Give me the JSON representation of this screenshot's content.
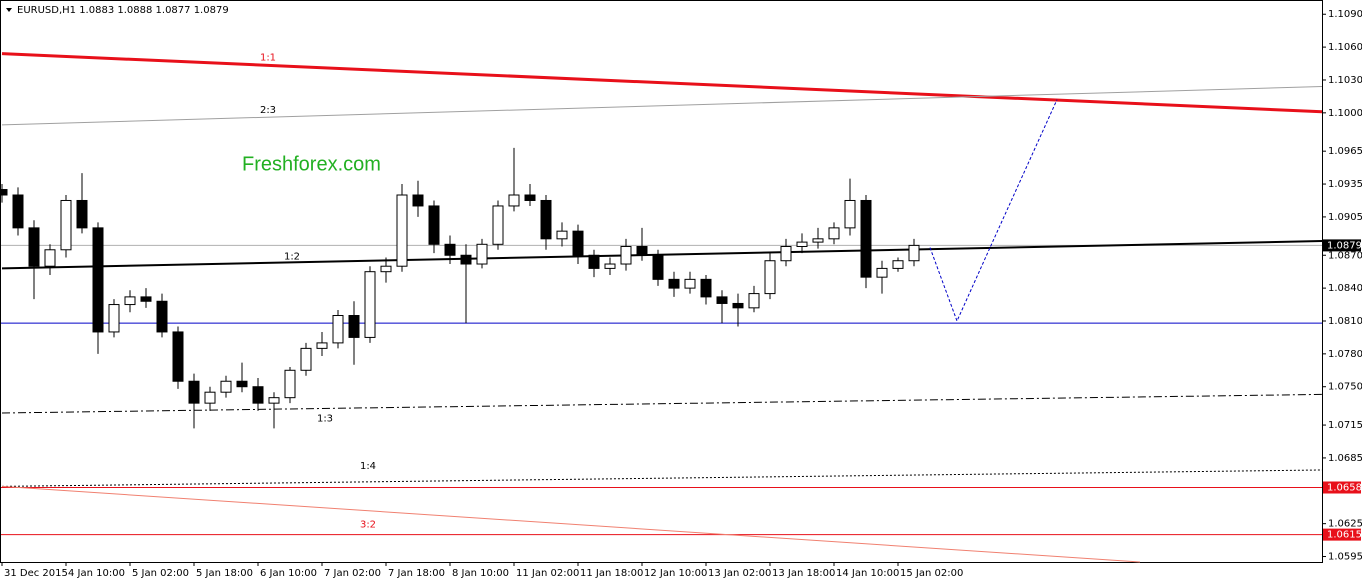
{
  "chart_data": {
    "type": "candlestick",
    "title": "EURUSD,H1  1.0883 1.0888 1.0877 1.0879",
    "watermark": "Freshforex.com",
    "xlim": [
      0,
      330
    ],
    "xticks": [
      {
        "value": 0,
        "label": "31 Dec 2015"
      },
      {
        "value": 16,
        "label": "4 Jan 10:00"
      },
      {
        "value": 32,
        "label": "5 Jan 02:00"
      },
      {
        "value": 48,
        "label": "5 Jan 18:00"
      },
      {
        "value": 64,
        "label": "6 Jan 10:00"
      },
      {
        "value": 80,
        "label": "7 Jan 02:00"
      },
      {
        "value": 96,
        "label": "7 Jan 18:00"
      },
      {
        "value": 112,
        "label": "8 Jan 10:00"
      },
      {
        "value": 128,
        "label": "11 Jan 02:00"
      },
      {
        "value": 144,
        "label": "11 Jan 18:00"
      },
      {
        "value": 160,
        "label": "12 Jan 10:00"
      },
      {
        "value": 176,
        "label": "13 Jan 02:00"
      },
      {
        "value": 192,
        "label": "13 Jan 18:00"
      },
      {
        "value": 208,
        "label": "14 Jan 10:00"
      },
      {
        "value": 224,
        "label": "15 Jan 02:00"
      }
    ],
    "ylim": [
      1.059,
      1.1103
    ],
    "yticks": [
      {
        "value": 1.109,
        "label": "1.1090"
      },
      {
        "value": 1.106,
        "label": "1.1060"
      },
      {
        "value": 1.103,
        "label": "1.1030"
      },
      {
        "value": 1.1,
        "label": "1.1000"
      },
      {
        "value": 1.0965,
        "label": "1.0965"
      },
      {
        "value": 1.0935,
        "label": "1.0935"
      },
      {
        "value": 1.0905,
        "label": "1.0905"
      },
      {
        "value": 1.087,
        "label": "1.0870"
      },
      {
        "value": 1.084,
        "label": "1.0840"
      },
      {
        "value": 1.081,
        "label": "1.0810"
      },
      {
        "value": 1.078,
        "label": "1.0780"
      },
      {
        "value": 1.075,
        "label": "1.0750"
      },
      {
        "value": 1.0715,
        "label": "1.0715"
      },
      {
        "value": 1.0685,
        "label": "1.0685"
      },
      {
        "value": 1.0625,
        "label": "1.0625"
      },
      {
        "value": 1.0595,
        "label": "1.0595"
      }
    ],
    "x": [
      0,
      4,
      8,
      12,
      16,
      20,
      24,
      28,
      32,
      36,
      40,
      44,
      48,
      52,
      56,
      60,
      64,
      68,
      72,
      76,
      80,
      84,
      88,
      92,
      96,
      100,
      104,
      108,
      112,
      116,
      120,
      124,
      128,
      132,
      136,
      140,
      144,
      148,
      152,
      156,
      160,
      164,
      168,
      172,
      176,
      180,
      184,
      188,
      192,
      196,
      200,
      204,
      208,
      212,
      216,
      220,
      224,
      228
    ],
    "open": [
      1.093,
      1.0925,
      1.0895,
      1.086,
      1.0875,
      1.092,
      1.0895,
      1.08,
      1.0825,
      1.0832,
      1.0828,
      1.08,
      1.0755,
      1.0735,
      1.0745,
      1.0755,
      1.075,
      1.0735,
      1.074,
      1.0765,
      1.0785,
      1.079,
      1.0815,
      1.0795,
      1.0855,
      1.086,
      1.0925,
      1.0915,
      1.088,
      1.087,
      1.0862,
      1.088,
      1.0915,
      1.0925,
      1.092,
      1.0885,
      1.0892,
      1.087,
      1.0858,
      1.0862,
      1.0878,
      1.087,
      1.0848,
      1.084,
      1.0848,
      1.0832,
      1.0826,
      1.0822,
      1.0835,
      1.0865,
      1.0878,
      1.0882,
      1.0885,
      1.0895,
      1.092,
      1.085,
      1.0858,
      1.0865
    ],
    "high": [
      1.0935,
      1.0932,
      1.0902,
      1.088,
      1.0925,
      1.0945,
      1.09,
      1.083,
      1.0838,
      1.084,
      1.0835,
      1.0805,
      1.0762,
      1.075,
      1.076,
      1.0772,
      1.0758,
      1.0745,
      1.0768,
      1.079,
      1.08,
      1.082,
      1.0828,
      1.086,
      1.0868,
      1.0935,
      1.0938,
      1.092,
      1.0888,
      1.088,
      1.0885,
      1.092,
      1.0968,
      1.0935,
      1.0925,
      1.09,
      1.0898,
      1.0875,
      1.0868,
      1.0885,
      1.0895,
      1.0875,
      1.0855,
      1.0855,
      1.0852,
      1.0838,
      1.0835,
      1.0842,
      1.0872,
      1.0885,
      1.089,
      1.0895,
      1.09,
      1.094,
      1.0925,
      1.0865,
      1.0868,
      1.0885
    ],
    "low": [
      1.0918,
      1.0888,
      1.083,
      1.0852,
      1.0868,
      1.089,
      1.078,
      1.0795,
      1.0818,
      1.0822,
      1.0795,
      1.0748,
      1.0712,
      1.0728,
      1.074,
      1.0745,
      1.0728,
      1.0712,
      1.0735,
      1.076,
      1.0778,
      1.0785,
      1.077,
      1.079,
      1.0845,
      1.0855,
      1.0905,
      1.0872,
      1.0862,
      1.0808,
      1.0858,
      1.0875,
      1.091,
      1.0915,
      1.0875,
      1.0878,
      1.0862,
      1.085,
      1.0852,
      1.0856,
      1.0865,
      1.0842,
      1.0832,
      1.0835,
      1.0825,
      1.0808,
      1.0805,
      1.0818,
      1.083,
      1.086,
      1.0872,
      1.0876,
      1.088,
      1.0888,
      1.084,
      1.0835,
      1.0855,
      1.086
    ],
    "close": [
      1.0925,
      1.0895,
      1.086,
      1.0875,
      1.092,
      1.0895,
      1.08,
      1.0825,
      1.0832,
      1.0828,
      1.08,
      1.0755,
      1.0735,
      1.0745,
      1.0755,
      1.075,
      1.0735,
      1.074,
      1.0765,
      1.0785,
      1.079,
      1.0815,
      1.0795,
      1.0855,
      1.086,
      1.0925,
      1.0915,
      1.088,
      1.087,
      1.0862,
      1.088,
      1.0915,
      1.0925,
      1.092,
      1.0885,
      1.0892,
      1.087,
      1.0858,
      1.0862,
      1.0878,
      1.087,
      1.0848,
      1.084,
      1.0848,
      1.0832,
      1.0826,
      1.0822,
      1.0835,
      1.0865,
      1.0878,
      1.0882,
      1.0885,
      1.0895,
      1.092,
      1.085,
      1.0858,
      1.0865,
      1.0879
    ],
    "trendlines": [
      {
        "name": "1:1",
        "color": "#e8101a",
        "width": 3,
        "style": "solid",
        "x": [
          0,
          330
        ],
        "y": [
          1.1054,
          1.1001
        ]
      },
      {
        "name": "2:3",
        "color": "#a0a0a0",
        "width": 1,
        "style": "solid",
        "x": [
          0,
          330
        ],
        "y": [
          1.0989,
          1.1024
        ]
      },
      {
        "name": "1:2",
        "color": "#000000",
        "width": 2,
        "style": "solid",
        "x": [
          0,
          330
        ],
        "y": [
          1.0858,
          1.0883
        ]
      },
      {
        "name": "1:3",
        "color": "#000000",
        "width": 1,
        "style": "dashdot",
        "x": [
          0,
          330
        ],
        "y": [
          1.0726,
          1.0743
        ]
      },
      {
        "name": "1:4",
        "color": "#000000",
        "width": 1,
        "style": "dotted",
        "x": [
          0,
          330
        ],
        "y": [
          1.0659,
          1.0674
        ]
      },
      {
        "name": "3:2",
        "color": "#f08070",
        "width": 1,
        "style": "solid",
        "x": [
          0,
          284.5
        ],
        "y": [
          1.0659,
          1.059
        ]
      }
    ],
    "levels": [
      {
        "value": 1.0879,
        "color": "#b0b0b0",
        "boxed": true,
        "box_color": "#000000"
      },
      {
        "value": 1.0808,
        "color": "#0000c8",
        "boxed": false
      },
      {
        "value": 1.0658,
        "color": "#e8101a",
        "boxed": true,
        "box_color": "#e8101a"
      },
      {
        "value": 1.0615,
        "color": "#e8101a",
        "boxed": true,
        "box_color": "#e8101a"
      }
    ],
    "forecast": {
      "color": "#0000c8",
      "x": [
        232,
        238.75,
        247.5,
        263.75
      ],
      "y": [
        1.0877,
        1.081,
        1.0881,
        1.1012
      ]
    }
  }
}
